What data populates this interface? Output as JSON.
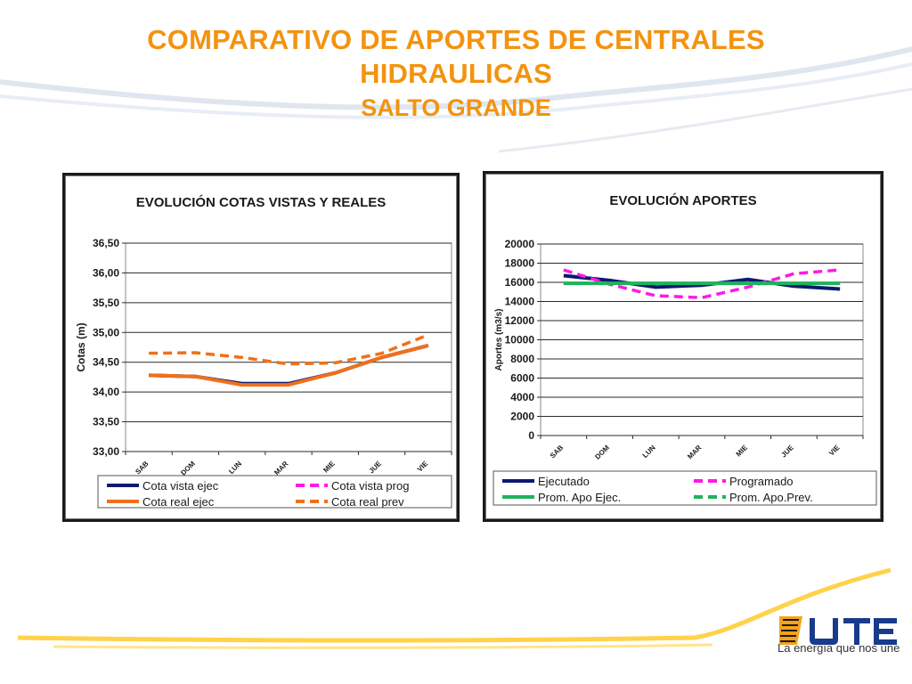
{
  "slide": {
    "title_line1": "COMPARATIVO DE APORTES DE CENTRALES",
    "title_line2": "HIDRAULICAS",
    "subtitle": "SALTO GRANDE",
    "title_color": "#f3930f",
    "tagline": "La energía que nos une",
    "logo_icon": "ute-logo-icon"
  },
  "chart_data": [
    {
      "id": "left",
      "type": "line",
      "title": "EVOLUCIÓN  COTAS VISTAS Y REALES",
      "xlabel": "",
      "ylabel": "Cotas (m)",
      "categories": [
        "SAB",
        "DOM",
        "LUN",
        "MAR",
        "MIE",
        "JUE",
        "VIE"
      ],
      "ylim": [
        33.0,
        36.5
      ],
      "yticks": [
        33.0,
        33.5,
        34.0,
        34.5,
        35.0,
        35.5,
        36.0,
        36.5
      ],
      "ytick_labels": [
        "33,00",
        "33,50",
        "34,00",
        "34,50",
        "35,00",
        "35,50",
        "36,00",
        "36,50"
      ],
      "grid": true,
      "legend_position": "bottom",
      "series": [
        {
          "name": "Cota vista ejec",
          "color": "#0d1a6e",
          "dash": false,
          "values": [
            34.28,
            34.26,
            34.14,
            34.14,
            34.32,
            34.58,
            34.78
          ]
        },
        {
          "name": "Cota vista prog",
          "color": "#ff19e6",
          "dash": true,
          "values": [
            null,
            null,
            null,
            null,
            null,
            null,
            null
          ]
        },
        {
          "name": "Cota real ejec",
          "color": "#f07019",
          "dash": false,
          "values": [
            34.28,
            34.26,
            34.12,
            34.12,
            34.32,
            34.58,
            34.78
          ]
        },
        {
          "name": "Cota real prev",
          "color": "#f07019",
          "dash": true,
          "values": [
            34.65,
            34.66,
            34.58,
            34.47,
            34.49,
            34.65,
            34.96
          ]
        }
      ]
    },
    {
      "id": "right",
      "type": "line",
      "title": "EVOLUCIÓN  APORTES",
      "xlabel": "",
      "ylabel": "Aportes (m3/s)",
      "categories": [
        "SAB",
        "DOM",
        "LUN",
        "MAR",
        "MIE",
        "JUE",
        "VIE"
      ],
      "ylim": [
        0,
        20000
      ],
      "yticks": [
        0,
        2000,
        4000,
        6000,
        8000,
        10000,
        12000,
        14000,
        16000,
        18000,
        20000
      ],
      "ytick_labels": [
        "0",
        "2000",
        "4000",
        "6000",
        "8000",
        "10000",
        "12000",
        "14000",
        "16000",
        "18000",
        "20000"
      ],
      "grid": true,
      "legend_position": "bottom",
      "series": [
        {
          "name": "Ejecutado",
          "color": "#0d1a6e",
          "dash": false,
          "values": [
            16700,
            16200,
            15500,
            15700,
            16300,
            15600,
            15300
          ]
        },
        {
          "name": "Programado",
          "color": "#ff19e6",
          "dash": true,
          "values": [
            17300,
            15800,
            14600,
            14400,
            15500,
            16900,
            17300
          ]
        },
        {
          "name": "Prom. Apo Ejec.",
          "color": "#1fb35a",
          "dash": false,
          "values": [
            15900,
            15900,
            15900,
            15900,
            15900,
            15900,
            15900
          ]
        },
        {
          "name": "Prom. Apo.Prev.",
          "color": "#1fb35a",
          "dash": true,
          "values": [
            15900,
            15900,
            15900,
            15900,
            15900,
            15900,
            15900
          ]
        }
      ]
    }
  ]
}
